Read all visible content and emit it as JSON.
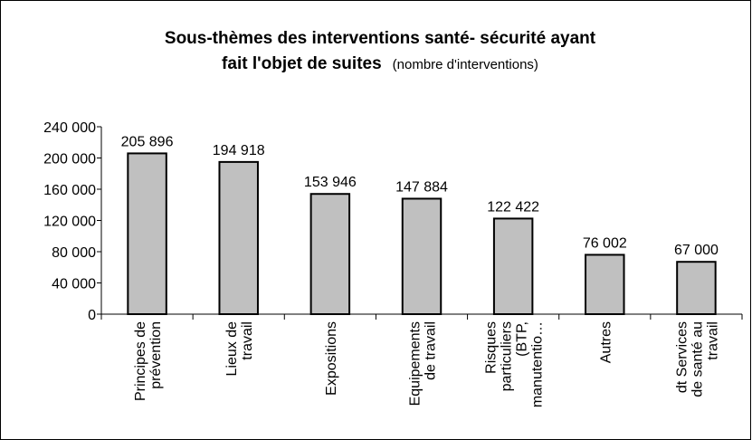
{
  "chart_data": {
    "type": "bar",
    "title": "Sous-thèmes des interventions santé- sécurité ayant fait l'objet de suites",
    "subtitle": "(nombre d'interventions)",
    "categories": [
      "Principes de prévention",
      "Lieux de travail",
      "Expositions",
      "Equipements de travail",
      "Risques particuliers (BTP, manutentio…",
      "Autres",
      "dt Services de santé au travail"
    ],
    "values": [
      205896,
      194918,
      153946,
      147884,
      122422,
      76002,
      67000
    ],
    "value_labels": [
      "205 896",
      "194 918",
      "153 946",
      "147 884",
      "122 422",
      "76 002",
      "67 000"
    ],
    "color": "#c0c0c0",
    "ylim": [
      0,
      240000
    ],
    "yticks": [
      {
        "value": 0,
        "label": "0"
      },
      {
        "value": 40000,
        "label": "40 000"
      },
      {
        "value": 80000,
        "label": "80 000"
      },
      {
        "value": 120000,
        "label": "120 000"
      },
      {
        "value": 160000,
        "label": "160 000"
      },
      {
        "value": 200000,
        "label": "200 000"
      },
      {
        "value": 240000,
        "label": "240 000"
      }
    ],
    "grid": false
  }
}
